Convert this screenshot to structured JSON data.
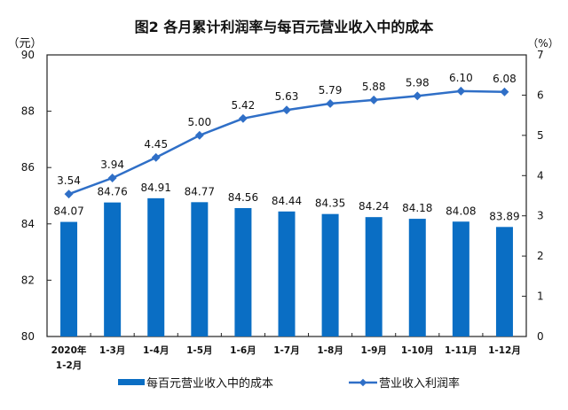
{
  "chart_data": {
    "type": "bar+line",
    "title": "图2 各月累计利润率与每百元营业收入中的成本",
    "categories": [
      "2020年\n1-2月",
      "1-3月",
      "1-4月",
      "1-5月",
      "1-6月",
      "1-7月",
      "1-8月",
      "1-9月",
      "1-10月",
      "1-11月",
      "1-12月"
    ],
    "left_axis": {
      "unit": "（元）",
      "ylim": [
        80,
        90
      ],
      "ticks": [
        "80",
        "82",
        "84",
        "86",
        "88",
        "90"
      ]
    },
    "right_axis": {
      "unit": "（%）",
      "ylim": [
        0,
        7
      ],
      "ticks": [
        "0",
        "1",
        "2",
        "3",
        "4",
        "5",
        "6",
        "7"
      ]
    },
    "series": [
      {
        "name": "每百元营业收入中的成本",
        "kind": "bar",
        "axis": "left",
        "color": "#0A6EC4",
        "values": [
          84.07,
          84.76,
          84.91,
          84.77,
          84.56,
          84.44,
          84.35,
          84.24,
          84.18,
          84.08,
          83.89
        ],
        "labels": [
          "84.07",
          "84.76",
          "84.91",
          "84.77",
          "84.56",
          "84.44",
          "84.35",
          "84.24",
          "84.18",
          "84.08",
          "83.89"
        ]
      },
      {
        "name": "营业收入利润率",
        "kind": "line",
        "axis": "right",
        "color": "#2F6FC7",
        "values": [
          3.54,
          3.94,
          4.45,
          5.0,
          5.42,
          5.63,
          5.79,
          5.88,
          5.98,
          6.1,
          6.08
        ],
        "labels": [
          "3.54",
          "3.94",
          "4.45",
          "5.00",
          "5.42",
          "5.63",
          "5.79",
          "5.88",
          "5.98",
          "6.10",
          "6.08"
        ]
      }
    ],
    "legend_position": "bottom",
    "grid": false
  }
}
